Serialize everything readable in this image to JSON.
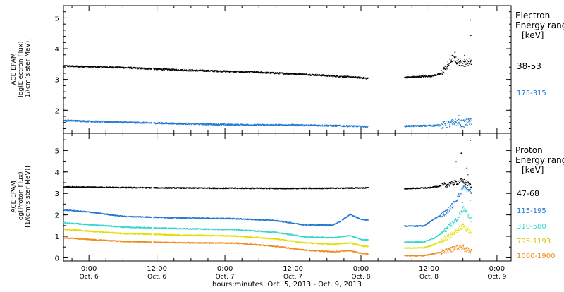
{
  "xaxis": {
    "label": "hours:minutes, Oct.  5, 2013 - Oct.  9, 2013",
    "tick_labels": [
      {
        "time": "0:00",
        "date": "Oct. 6",
        "hour": 24
      },
      {
        "time": "12:00",
        "date": "Oct. 6",
        "hour": 36
      },
      {
        "time": "0:00",
        "date": "Oct. 7",
        "hour": 48
      },
      {
        "time": "12:00",
        "date": "Oct. 7",
        "hour": 60
      },
      {
        "time": "0:00",
        "date": "Oct. 8",
        "hour": 72
      },
      {
        "time": "12:00",
        "date": "Oct. 8",
        "hour": 84
      },
      {
        "time": "0:00",
        "date": "Oct. 9",
        "hour": 96
      }
    ]
  },
  "chart_data": [
    {
      "type": "scatter",
      "panel": "electron",
      "ylabel_lines": [
        "ACE EPAM",
        "log(Electron Flux)",
        "[1/(cm²s ster MeV)]"
      ],
      "ylim": [
        1.25,
        5.4
      ],
      "yticks": [
        2,
        3,
        4,
        5
      ],
      "xlim": [
        19.5,
        98.5
      ],
      "legend_title": [
        "Electron",
        "Energy ranges",
        "[keV]"
      ],
      "gaps": [
        [
          35,
          35.3
        ],
        [
          62.5,
          62.6
        ],
        [
          68.5,
          68.6
        ],
        [
          73.2,
          79.6
        ]
      ],
      "series": [
        {
          "name": "38-53",
          "color": "#000000",
          "x": [
            19.5,
            30,
            40,
            50,
            60,
            65,
            72,
            73,
            79.6,
            82,
            84.5,
            86,
            87,
            88,
            89,
            90,
            91.4
          ],
          "y": [
            3.45,
            3.4,
            3.32,
            3.27,
            3.2,
            3.15,
            3.07,
            3.05,
            3.08,
            3.1,
            3.13,
            3.2,
            3.4,
            3.7,
            3.6,
            3.55,
            3.6
          ],
          "spikes": [
            [
              91.2,
              4.95
            ],
            [
              91.3,
              4.45
            ],
            [
              88.5,
              3.9
            ],
            [
              90.2,
              3.8
            ]
          ]
        },
        {
          "name": "175-315",
          "color": "#1f77d0",
          "x": [
            19.5,
            30,
            40,
            50,
            60,
            65,
            72,
            73,
            79.6,
            84,
            87,
            88.5,
            90,
            91.4
          ],
          "y": [
            1.68,
            1.62,
            1.58,
            1.54,
            1.53,
            1.52,
            1.49,
            1.48,
            1.5,
            1.51,
            1.54,
            1.62,
            1.58,
            1.66
          ],
          "spikes": [
            [
              89.2,
              1.84
            ],
            [
              91.3,
              1.75
            ]
          ]
        }
      ]
    },
    {
      "type": "scatter",
      "panel": "proton",
      "ylabel_lines": [
        "ACE EPAM",
        "log(Proton Flux)",
        "[1/(cm²s ster MeV)]"
      ],
      "ylim": [
        -0.15,
        5.8
      ],
      "yticks": [
        0,
        1,
        2,
        3,
        4,
        5
      ],
      "xlim": [
        19.5,
        98.5
      ],
      "legend_title": [
        "Proton",
        "Energy ranges",
        "[keV]"
      ],
      "gaps": [
        [
          35,
          35.3
        ],
        [
          62.5,
          62.6
        ],
        [
          68.5,
          68.6
        ],
        [
          73.2,
          79.6
        ]
      ],
      "series": [
        {
          "name": "47-68",
          "color": "#000000",
          "x": [
            19.5,
            30,
            40,
            50,
            60,
            72,
            73,
            79.6,
            84,
            87,
            89,
            90,
            91.4
          ],
          "y": [
            3.32,
            3.29,
            3.27,
            3.26,
            3.25,
            3.27,
            3.28,
            3.24,
            3.28,
            3.42,
            3.55,
            3.6,
            3.35
          ],
          "spikes": [
            [
              89.6,
              4.9
            ],
            [
              91.2,
              5.5
            ],
            [
              90.6,
              4.2
            ],
            [
              88.7,
              4.5
            ]
          ]
        },
        {
          "name": "115-195",
          "color": "#1f77d0",
          "x": [
            19.5,
            24,
            30,
            40,
            50,
            57,
            62,
            67,
            68.5,
            70,
            72,
            73,
            79.6,
            83,
            85,
            87,
            88.5,
            90,
            91.4
          ],
          "y": [
            2.25,
            2.15,
            1.95,
            1.88,
            1.84,
            1.75,
            1.55,
            1.55,
            1.75,
            2.05,
            1.8,
            1.78,
            1.5,
            1.5,
            1.85,
            2.15,
            2.6,
            3.3,
            3.1
          ],
          "spikes": [
            [
              90.8,
              3.9
            ],
            [
              89.8,
              2.6
            ]
          ]
        },
        {
          "name": "310-580",
          "color": "#36d6d0",
          "x": [
            19.5,
            30,
            40,
            50,
            57,
            62,
            67,
            70,
            72,
            73,
            79.6,
            83,
            85,
            87,
            89,
            90,
            91.4
          ],
          "y": [
            1.65,
            1.45,
            1.38,
            1.33,
            1.2,
            1.0,
            0.95,
            1.05,
            0.88,
            0.85,
            0.75,
            0.75,
            0.95,
            1.35,
            1.85,
            2.3,
            1.8
          ],
          "spikes": [
            [
              91.2,
              2.7
            ]
          ]
        },
        {
          "name": "795-1193",
          "color": "#e0e000",
          "x": [
            19.5,
            30,
            40,
            50,
            57,
            62,
            67,
            70,
            72,
            73,
            79.6,
            83,
            85,
            87,
            89,
            90,
            91.4
          ],
          "y": [
            1.35,
            1.15,
            1.08,
            1.03,
            0.9,
            0.72,
            0.65,
            0.72,
            0.58,
            0.55,
            0.48,
            0.48,
            0.65,
            0.95,
            1.3,
            1.5,
            1.1
          ],
          "spikes": [
            [
              90.8,
              1.95
            ]
          ]
        },
        {
          "name": "1060-1900",
          "color": "#f08a1c",
          "x": [
            19.5,
            30,
            40,
            50,
            57,
            62,
            67,
            70,
            72,
            73,
            79.6,
            83,
            85,
            87,
            89,
            90,
            91.4
          ],
          "y": [
            0.95,
            0.78,
            0.72,
            0.7,
            0.55,
            0.38,
            0.3,
            0.35,
            0.22,
            0.2,
            0.12,
            0.12,
            0.22,
            0.35,
            0.5,
            0.45,
            0.3
          ],
          "spikes": [
            [
              90.0,
              0.62
            ]
          ]
        }
      ]
    }
  ]
}
